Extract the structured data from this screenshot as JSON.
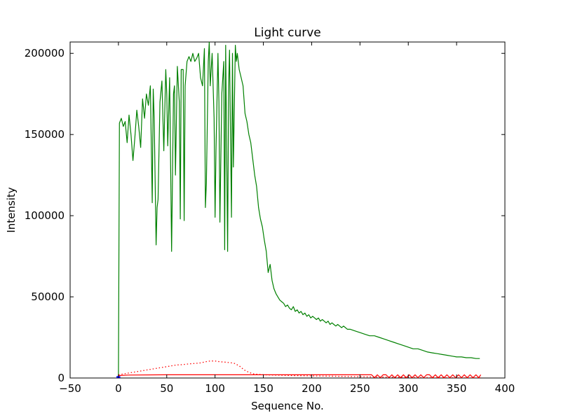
{
  "chart_data": {
    "type": "line",
    "title": "Light curve",
    "xlabel": "Sequence No.",
    "ylabel": "Intensity",
    "xlim": [
      -50,
      400
    ],
    "ylim": [
      0,
      207000
    ],
    "xticks": [
      -50,
      0,
      50,
      100,
      150,
      200,
      250,
      300,
      350,
      400
    ],
    "yticks": [
      0,
      50000,
      100000,
      150000,
      200000
    ],
    "grid": false,
    "legend": "none",
    "series": [
      {
        "style": "solid",
        "color": "#008000",
        "x": [
          0,
          1,
          3,
          5,
          7,
          9,
          11,
          13,
          15,
          17,
          19,
          21,
          23,
          25,
          27,
          29,
          31,
          33,
          35,
          36,
          37,
          39,
          40,
          41,
          43,
          45,
          47,
          49,
          50,
          51,
          53,
          55,
          57,
          58,
          59,
          61,
          63,
          64,
          65,
          67,
          68,
          69,
          71,
          73,
          75,
          77,
          79,
          81,
          83,
          85,
          87,
          89,
          90,
          91,
          93,
          94,
          95,
          97,
          99,
          100,
          101,
          103,
          104,
          105,
          107,
          109,
          110,
          111,
          113,
          114,
          115,
          117,
          118,
          119,
          121,
          122,
          123,
          125,
          127,
          129,
          131,
          133,
          135,
          137,
          139,
          141,
          143,
          145,
          147,
          149,
          151,
          153,
          155,
          157,
          159,
          161,
          163,
          165,
          167,
          169,
          171,
          173,
          175,
          177,
          179,
          181,
          183,
          185,
          187,
          189,
          191,
          193,
          195,
          197,
          199,
          201,
          203,
          205,
          207,
          209,
          211,
          213,
          215,
          217,
          219,
          221,
          223,
          225,
          227,
          229,
          231,
          233,
          235,
          237,
          240,
          245,
          250,
          255,
          260,
          265,
          270,
          275,
          280,
          285,
          290,
          295,
          300,
          305,
          310,
          315,
          320,
          325,
          330,
          335,
          340,
          345,
          350,
          355,
          360,
          365,
          370,
          374
        ],
        "y": [
          0,
          157000,
          160000,
          155000,
          158000,
          145000,
          162000,
          150000,
          134000,
          148000,
          165000,
          155000,
          142000,
          172000,
          160000,
          175000,
          168000,
          180000,
          108000,
          178000,
          160000,
          82000,
          105000,
          110000,
          170000,
          183000,
          140000,
          190000,
          175000,
          143000,
          185000,
          78000,
          175000,
          180000,
          125000,
          192000,
          170000,
          98000,
          190000,
          190000,
          97000,
          180000,
          195000,
          198000,
          195000,
          200000,
          195000,
          197000,
          200000,
          185000,
          180000,
          203000,
          105000,
          120000,
          195000,
          207000,
          180000,
          200000,
          160000,
          99000,
          140000,
          200000,
          170000,
          96000,
          175000,
          195000,
          79000,
          205000,
          78000,
          180000,
          202000,
          99000,
          200000,
          130000,
          205000,
          195000,
          200000,
          190000,
          185000,
          180000,
          163000,
          158000,
          150000,
          145000,
          135000,
          125000,
          118000,
          105000,
          98000,
          93000,
          85000,
          78000,
          65000,
          70000,
          60000,
          55000,
          52000,
          50000,
          48000,
          47000,
          46000,
          44000,
          45000,
          43000,
          42000,
          44000,
          41000,
          42000,
          40000,
          41000,
          39000,
          40000,
          38000,
          39000,
          37000,
          38000,
          37000,
          36000,
          37000,
          35000,
          36000,
          35000,
          34000,
          35000,
          33000,
          34000,
          33000,
          32000,
          33000,
          32000,
          31000,
          32000,
          31000,
          30000,
          30000,
          29000,
          28000,
          27000,
          26000,
          26000,
          25000,
          24000,
          23000,
          22000,
          21000,
          20000,
          19000,
          18000,
          18000,
          17000,
          16000,
          15500,
          15000,
          14500,
          14000,
          13500,
          13000,
          13000,
          12500,
          12500,
          12000,
          12000
        ]
      },
      {
        "style": "dotted",
        "color": "#ff0000",
        "x": [
          0,
          5,
          10,
          15,
          20,
          25,
          30,
          35,
          40,
          45,
          50,
          55,
          60,
          65,
          70,
          75,
          80,
          85,
          90,
          95,
          100,
          105,
          110,
          115,
          120,
          125,
          130,
          135,
          140,
          150,
          160,
          180,
          200,
          220,
          240,
          260,
          280,
          300,
          320,
          340,
          360,
          375
        ],
        "y": [
          2000,
          2500,
          3000,
          3500,
          4000,
          4500,
          5000,
          5500,
          6000,
          6500,
          7000,
          7500,
          8000,
          8200,
          8500,
          8800,
          9000,
          9300,
          10000,
          10500,
          10500,
          10000,
          9800,
          9500,
          9000,
          7500,
          5000,
          3500,
          2500,
          2000,
          1800,
          1500,
          1300,
          1100,
          900,
          700,
          500,
          400,
          300,
          200,
          150,
          100
        ]
      },
      {
        "style": "solid",
        "color": "#ff0000",
        "x": [
          0,
          10,
          50,
          100,
          150,
          200,
          250,
          262,
          265,
          268,
          271,
          274,
          277,
          280,
          283,
          286,
          289,
          292,
          295,
          298,
          301,
          304,
          307,
          310,
          313,
          316,
          319,
          322,
          325,
          328,
          331,
          334,
          337,
          340,
          343,
          346,
          349,
          352,
          355,
          358,
          361,
          364,
          367,
          370,
          373,
          375
        ],
        "y": [
          1500,
          1800,
          2000,
          2000,
          2000,
          2000,
          2000,
          2000,
          200,
          2000,
          200,
          2000,
          2000,
          200,
          2000,
          200,
          2000,
          200,
          2000,
          200,
          2000,
          200,
          2000,
          200,
          2000,
          200,
          2000,
          2000,
          200,
          2000,
          200,
          2000,
          200,
          2000,
          200,
          2000,
          200,
          2000,
          200,
          2000,
          200,
          2000,
          200,
          2000,
          200,
          2000
        ]
      },
      {
        "style": "solid",
        "color": "#0000ff",
        "x": [
          -2,
          2
        ],
        "y": [
          600,
          600
        ]
      }
    ]
  }
}
